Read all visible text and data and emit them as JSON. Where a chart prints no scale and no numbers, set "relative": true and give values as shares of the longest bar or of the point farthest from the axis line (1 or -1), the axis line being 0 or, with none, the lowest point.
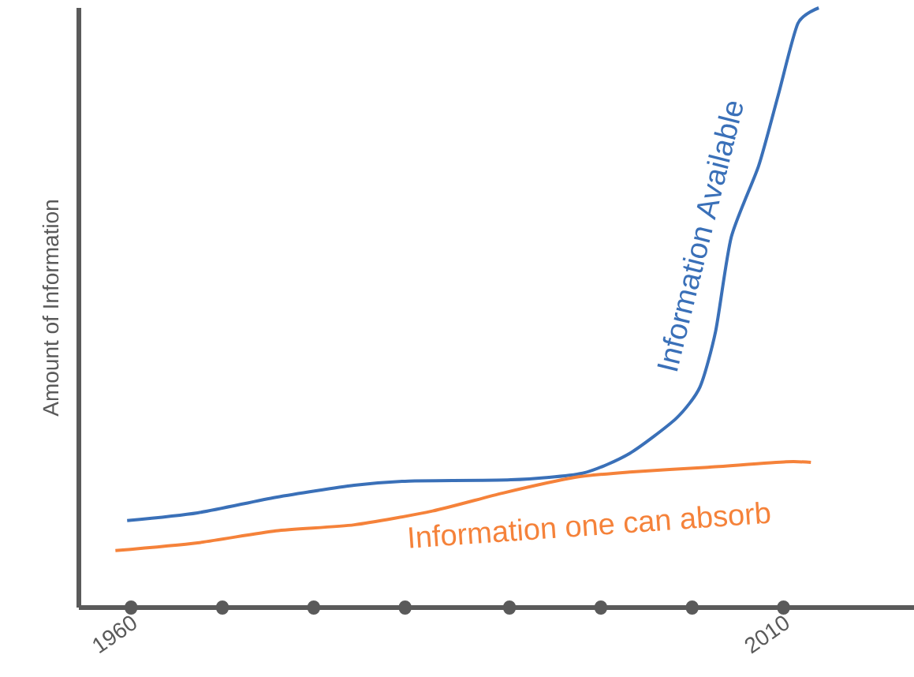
{
  "chart_data": {
    "type": "line",
    "ylabel": "Amount of Information",
    "relative": true,
    "legend": false,
    "grid": false,
    "marker": "none",
    "line_style": "solid",
    "xlim": [
      1956,
      2020
    ],
    "xticks": [
      1960,
      {
        "value": 1967,
        "label": null
      },
      {
        "value": 1974,
        "label": null
      },
      {
        "value": 1981,
        "label": null
      },
      {
        "value": 1989,
        "label": null
      },
      {
        "value": 1996,
        "label": null
      },
      {
        "value": 2003,
        "label": null
      },
      2010
    ],
    "series": [
      {
        "name": "Information Available",
        "color": "#3a70b8",
        "x": [
          1959.7,
          1965.1,
          1971.1,
          1977.1,
          1981.3,
          1989.1,
          1994.6,
          1998.2,
          2001.8,
          2003.6,
          2004.8,
          2006.0,
          2008.1,
          2009.6,
          2011.1,
          2012.7
        ],
        "values": [
          0.145,
          0.158,
          0.184,
          0.204,
          0.211,
          0.213,
          0.224,
          0.257,
          0.316,
          0.368,
          0.461,
          0.618,
          0.737,
          0.855,
          0.974,
          1.0
        ]
      },
      {
        "name": "Information one can absorb",
        "color": "#f5823a",
        "x": [
          1958.8,
          1965.1,
          1971.1,
          1977.1,
          1983.1,
          1988.5,
          1994.0,
          1998.2,
          2004.2,
          2010.2,
          2012.1
        ],
        "values": [
          0.095,
          0.108,
          0.128,
          0.138,
          0.161,
          0.191,
          0.217,
          0.226,
          0.234,
          0.243,
          0.242
        ]
      }
    ]
  }
}
